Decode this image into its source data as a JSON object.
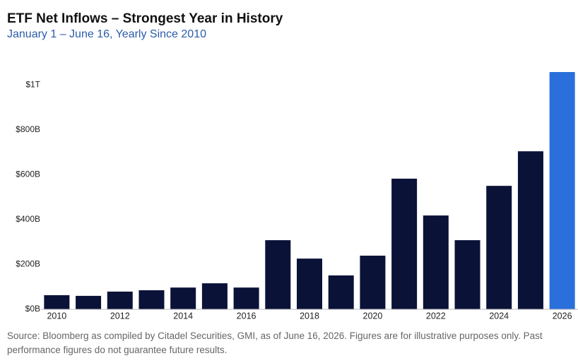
{
  "chart_data": {
    "type": "bar",
    "title": "ETF Net Inflows – Strongest Year in History",
    "subtitle": "January 1 – June 16, Yearly Since 2010",
    "categories": [
      "2010",
      null,
      "2012",
      null,
      "2014",
      null,
      "2016",
      null,
      "2018",
      null,
      "2020",
      null,
      "2022",
      null,
      "2024",
      null,
      "2026"
    ],
    "values": [
      63,
      60,
      79,
      85,
      97,
      116,
      97,
      308,
      226,
      151,
      239,
      582,
      418,
      308,
      550,
      704,
      1057
    ],
    "colors": [
      "#0b1238",
      "#0b1238",
      "#0b1238",
      "#0b1238",
      "#0b1238",
      "#0b1238",
      "#0b1238",
      "#0b1238",
      "#0b1238",
      "#0b1238",
      "#0b1238",
      "#0b1238",
      "#0b1238",
      "#0b1238",
      "#0b1238",
      "#0b1238",
      "#2a6fdb"
    ],
    "ylim": [
      0,
      1057
    ],
    "yticks": [
      {
        "value": 0,
        "label": "$0B"
      },
      {
        "value": 200,
        "label": "$200B"
      },
      {
        "value": 400,
        "label": "$400B"
      },
      {
        "value": 600,
        "label": "$600B"
      },
      {
        "value": 800,
        "label": "$800B"
      },
      {
        "value": 1000,
        "label": "$1T"
      }
    ],
    "grid": false,
    "note": "Source: Bloomberg as compiled by Citadel Securities, GMI, as of June 16, 2026. Figures are for illustrative purposes only. Past performance figures do not guarantee future results."
  }
}
